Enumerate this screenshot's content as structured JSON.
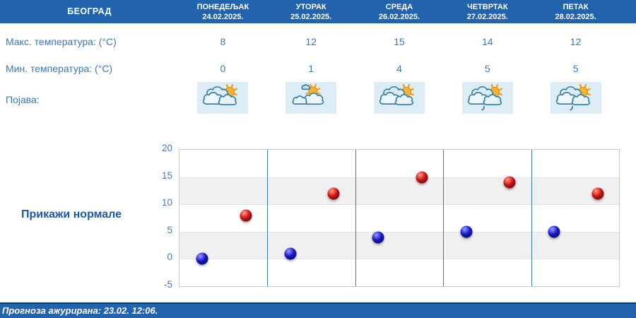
{
  "colors": {
    "header_bg": "#2263ae",
    "header_text": "#ffffff",
    "label_text": "#3c78bb",
    "axis_text": "#4a7ab8",
    "column_separator": "#3f7aa8",
    "band_gray": "#f0f0f0",
    "icon_tile_bg": "#ddedf5",
    "normals_text": "#1c57a4",
    "footer_bg": "#2263ae",
    "footer_border": "#0d3663",
    "dot_min": "#1a1ad0",
    "dot_max": "#d81717"
  },
  "header": {
    "city": "БЕОГРАД",
    "days": [
      {
        "name": "ПОНЕДЕЉАК",
        "date": "24.02.2025."
      },
      {
        "name": "УТОРАК",
        "date": "25.02.2025."
      },
      {
        "name": "СРЕДА",
        "date": "26.02.2025."
      },
      {
        "name": "ЧЕТВРТАК",
        "date": "27.02.2025."
      },
      {
        "name": "ПЕТАК",
        "date": "28.02.2025."
      }
    ]
  },
  "table": {
    "max_label": "Макс. температура: (°C)",
    "max_values": [
      "8",
      "12",
      "15",
      "14",
      "12"
    ],
    "min_label": "Мин. температура: (°C)",
    "min_values": [
      "0",
      "1",
      "4",
      "5",
      "5"
    ],
    "phenomenon_label": "Појава:",
    "phenomenon_icons": [
      "sun-behind-clouds-icon",
      "sun-with-small-cloud-icon",
      "sun-behind-clouds-icon",
      "clouds-sun-light-rain-icon",
      "clouds-sun-light-rain-icon"
    ]
  },
  "normals_button_label": "Прикажи нормале",
  "chart_data": {
    "type": "scatter",
    "categories": [
      "ПОНЕДЕЉАК 24.02.2025.",
      "УТОРАК 25.02.2025.",
      "СРЕДА 26.02.2025.",
      "ЧЕТВРТАК 27.02.2025.",
      "ПЕТАК 28.02.2025."
    ],
    "series": [
      {
        "name": "Мин. температура (°C)",
        "color": "#1a1ad0",
        "values": [
          0,
          1,
          4,
          5,
          5
        ]
      },
      {
        "name": "Макс. температура (°C)",
        "color": "#d81717",
        "values": [
          8,
          12,
          15,
          14,
          12
        ]
      }
    ],
    "ylim": [
      -5,
      20
    ],
    "yticks": [
      20,
      15,
      10,
      5,
      0,
      -5
    ],
    "grid": "alternating-horizontal-bands",
    "legend": "none"
  },
  "footer": {
    "updated_text": "Прогноза ажурирана:  23.02. 12:06."
  }
}
